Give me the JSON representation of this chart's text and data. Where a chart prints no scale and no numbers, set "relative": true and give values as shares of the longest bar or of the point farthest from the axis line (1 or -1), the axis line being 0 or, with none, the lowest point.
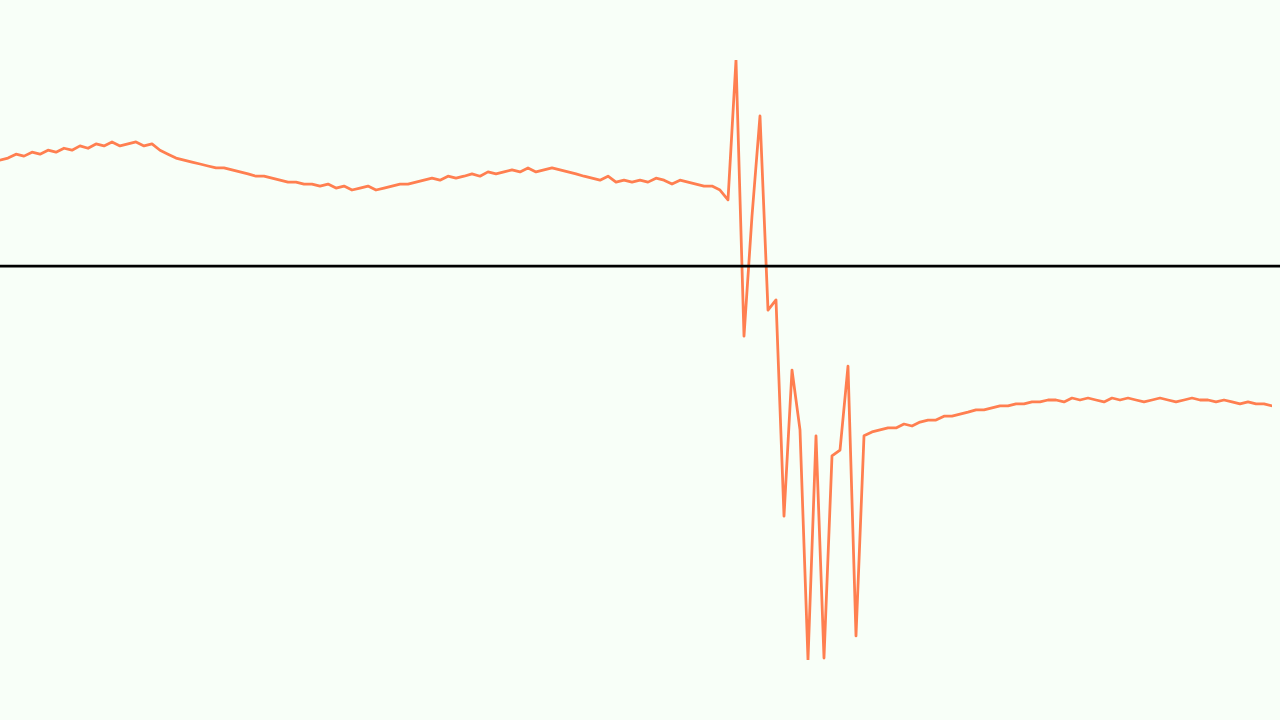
{
  "chart_data": {
    "type": "line",
    "relative": true,
    "marker": "none",
    "line_style": "solid",
    "categories": [
      null,
      null,
      null,
      null,
      null,
      null,
      null,
      null,
      null,
      null,
      null,
      null,
      null,
      null,
      null,
      null,
      null,
      null,
      null,
      null,
      null,
      null,
      null,
      null,
      null,
      null,
      null,
      null,
      null,
      null,
      null,
      null,
      null,
      null,
      null,
      null,
      null,
      null,
      null,
      null,
      null,
      null,
      null,
      null,
      null,
      null,
      null,
      null,
      null,
      null,
      null,
      null,
      null,
      null,
      null,
      null,
      null,
      null,
      null,
      null,
      null,
      null,
      null,
      null,
      null,
      null,
      null,
      null,
      null,
      null,
      null,
      null,
      null,
      null,
      null,
      null,
      null,
      null,
      null,
      null,
      null,
      null,
      null,
      null,
      null,
      null,
      null,
      null,
      null,
      null,
      null,
      null,
      null,
      null,
      null,
      null,
      null,
      null,
      null,
      null,
      null,
      null,
      null,
      null,
      null,
      null,
      null,
      null,
      null,
      null,
      null,
      null,
      null,
      null,
      null,
      null,
      null,
      null,
      null,
      null,
      null,
      null,
      null,
      null,
      null,
      null,
      null,
      null,
      null,
      null,
      null,
      null,
      null,
      null,
      null,
      null,
      null,
      null,
      null,
      null,
      null,
      null,
      null,
      null,
      null,
      null,
      null,
      null,
      null,
      null,
      null,
      null,
      null,
      null,
      null,
      null,
      null,
      null,
      null,
      null
    ],
    "series": [
      {
        "color": "#ff7f50",
        "values": [
          0.269,
          0.274,
          0.284,
          0.279,
          0.289,
          0.284,
          0.294,
          0.289,
          0.299,
          0.294,
          0.305,
          0.299,
          0.31,
          0.305,
          0.315,
          0.305,
          0.31,
          0.315,
          0.305,
          0.31,
          0.294,
          0.284,
          0.274,
          0.269,
          0.264,
          0.259,
          0.254,
          0.249,
          0.249,
          0.244,
          0.239,
          0.234,
          0.228,
          0.228,
          0.223,
          0.218,
          0.213,
          0.213,
          0.208,
          0.208,
          0.203,
          0.208,
          0.198,
          0.203,
          0.193,
          0.198,
          0.203,
          0.193,
          0.198,
          0.203,
          0.208,
          0.208,
          0.213,
          0.218,
          0.223,
          0.218,
          0.228,
          0.223,
          0.228,
          0.234,
          0.228,
          0.239,
          0.234,
          0.239,
          0.244,
          0.239,
          0.249,
          0.239,
          0.244,
          0.249,
          0.244,
          0.239,
          0.234,
          0.228,
          0.223,
          0.218,
          0.228,
          0.213,
          0.218,
          0.213,
          0.218,
          0.213,
          0.223,
          0.218,
          0.208,
          0.218,
          0.213,
          0.208,
          0.203,
          0.203,
          0.193,
          0.168,
          0.523,
          -0.178,
          0.127,
          0.381,
          -0.112,
          -0.086,
          -0.635,
          -0.264,
          -0.416,
          -1,
          -0.431,
          -0.995,
          -0.482,
          -0.467,
          -0.254,
          -0.939,
          -0.431,
          -0.421,
          -0.416,
          -0.411,
          -0.411,
          -0.401,
          -0.406,
          -0.396,
          -0.391,
          -0.391,
          -0.381,
          -0.381,
          -0.376,
          -0.371,
          -0.365,
          -0.365,
          -0.36,
          -0.355,
          -0.355,
          -0.35,
          -0.35,
          -0.345,
          -0.345,
          -0.34,
          -0.34,
          -0.345,
          -0.335,
          -0.34,
          -0.335,
          -0.34,
          -0.345,
          -0.335,
          -0.34,
          -0.335,
          -0.34,
          -0.345,
          -0.34,
          -0.335,
          -0.34,
          -0.345,
          -0.34,
          -0.335,
          -0.34,
          -0.34,
          -0.345,
          -0.34,
          -0.345,
          -0.35,
          -0.345,
          -0.35,
          -0.35,
          -0.355
        ]
      }
    ]
  }
}
